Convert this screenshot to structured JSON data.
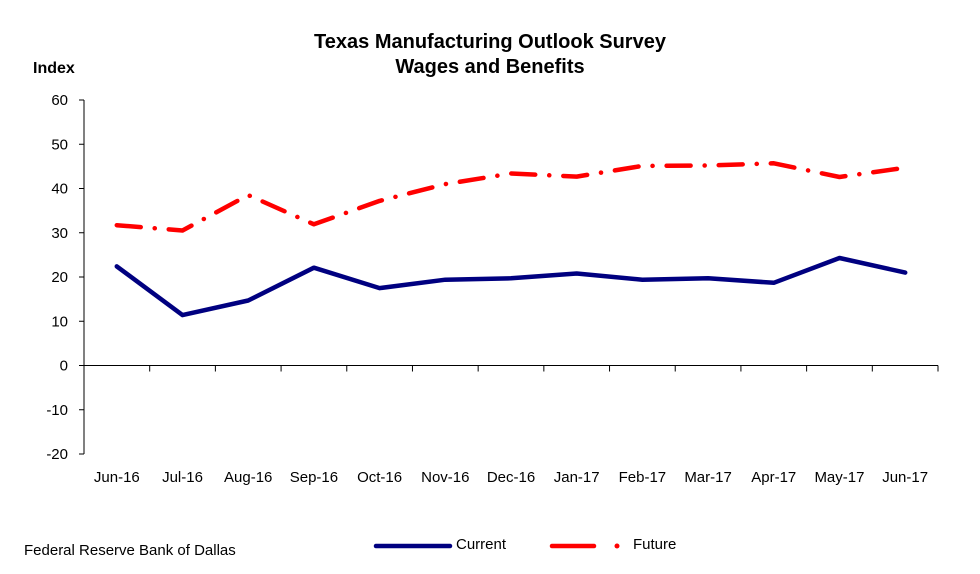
{
  "chart_data": {
    "type": "line",
    "title": "Texas Manufacturing Outlook Survey",
    "subtitle": "Wages and Benefits",
    "ylabel": "Index",
    "xlabel": "",
    "ylim": [
      -20,
      60
    ],
    "yticks": [
      -20,
      -10,
      0,
      10,
      20,
      30,
      40,
      50,
      60
    ],
    "grid": false,
    "legend_position": "bottom",
    "categories": [
      "Jun-16",
      "Jul-16",
      "Aug-16",
      "Sep-16",
      "Oct-16",
      "Nov-16",
      "Dec-16",
      "Jan-17",
      "Feb-17",
      "Mar-17",
      "Apr-17",
      "May-17",
      "Jun-17"
    ],
    "series": [
      {
        "name": "Current",
        "color": "#000080",
        "style": "solid",
        "values": [
          22.4,
          11.4,
          14.7,
          22.1,
          17.5,
          19.4,
          19.7,
          20.8,
          19.4,
          19.7,
          18.7,
          24.3,
          21.0
        ]
      },
      {
        "name": "Future",
        "color": "#ff0000",
        "style": "dash-dot",
        "values": [
          31.7,
          30.5,
          38.5,
          31.9,
          37.2,
          41.0,
          43.4,
          42.7,
          45.1,
          45.2,
          45.7,
          42.6,
          44.7
        ]
      }
    ],
    "source": "Federal Reserve Bank of Dallas"
  }
}
